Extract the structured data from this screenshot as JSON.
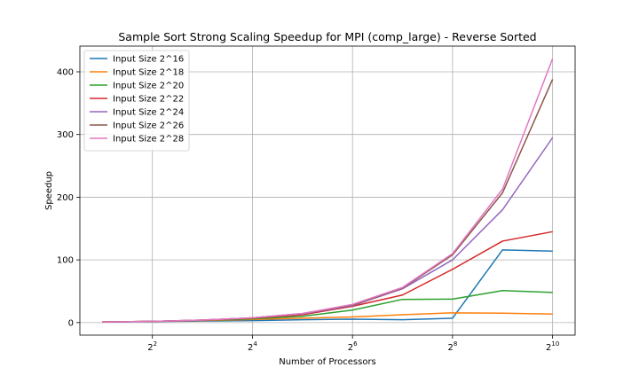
{
  "chart_data": {
    "type": "line",
    "title": "Sample Sort Strong Scaling Speedup for MPI (comp_large) - Reverse Sorted",
    "xlabel": "Number of Processors",
    "ylabel": "Speedup",
    "x_scale": "log2",
    "x": [
      2,
      4,
      8,
      16,
      32,
      64,
      128,
      256,
      512,
      1024
    ],
    "x_ticks": [
      4,
      16,
      64,
      256,
      1024
    ],
    "x_tick_labels": [
      {
        "base": "2",
        "exp": "2"
      },
      {
        "base": "2",
        "exp": "4"
      },
      {
        "base": "2",
        "exp": "6"
      },
      {
        "base": "2",
        "exp": "8"
      },
      {
        "base": "2",
        "exp": "10"
      }
    ],
    "y_ticks": [
      0,
      100,
      200,
      300,
      400
    ],
    "y_tick_labels": [
      "0",
      "100",
      "200",
      "300",
      "400"
    ],
    "ylim": [
      -20,
      441
    ],
    "grid": true,
    "legend_position": "top-left",
    "series": [
      {
        "name": "Input Size 2^16",
        "color": "#1f77b4",
        "values": [
          1.0,
          1.8,
          2.5,
          3.2,
          4.5,
          5.5,
          4.5,
          7.0,
          116,
          114
        ]
      },
      {
        "name": "Input Size 2^18",
        "color": "#ff7f0e",
        "values": [
          1.0,
          2.0,
          3.2,
          5.0,
          7.0,
          9.0,
          12.5,
          15.5,
          15.0,
          13.5
        ]
      },
      {
        "name": "Input Size 2^20",
        "color": "#2ca02c",
        "values": [
          1.0,
          2.0,
          3.5,
          6.0,
          10.0,
          20.0,
          37.0,
          37.5,
          51.0,
          48.0
        ]
      },
      {
        "name": "Input Size 2^22",
        "color": "#d62728",
        "values": [
          1.0,
          2.0,
          3.8,
          7.0,
          12.5,
          26.0,
          44.0,
          85.0,
          130,
          145
        ]
      },
      {
        "name": "Input Size 2^24",
        "color": "#9467bd",
        "values": [
          1.0,
          2.0,
          4.0,
          7.5,
          14.0,
          27.0,
          54.0,
          100,
          180,
          295
        ]
      },
      {
        "name": "Input Size 2^26",
        "color": "#8c564b",
        "values": [
          1.0,
          2.0,
          4.0,
          7.5,
          14.5,
          28.0,
          55.0,
          108,
          207,
          388
        ]
      },
      {
        "name": "Input Size 2^28",
        "color": "#e377c2",
        "values": [
          1.0,
          2.0,
          4.0,
          7.5,
          14.5,
          29.0,
          56.0,
          110,
          213,
          421
        ]
      }
    ]
  }
}
